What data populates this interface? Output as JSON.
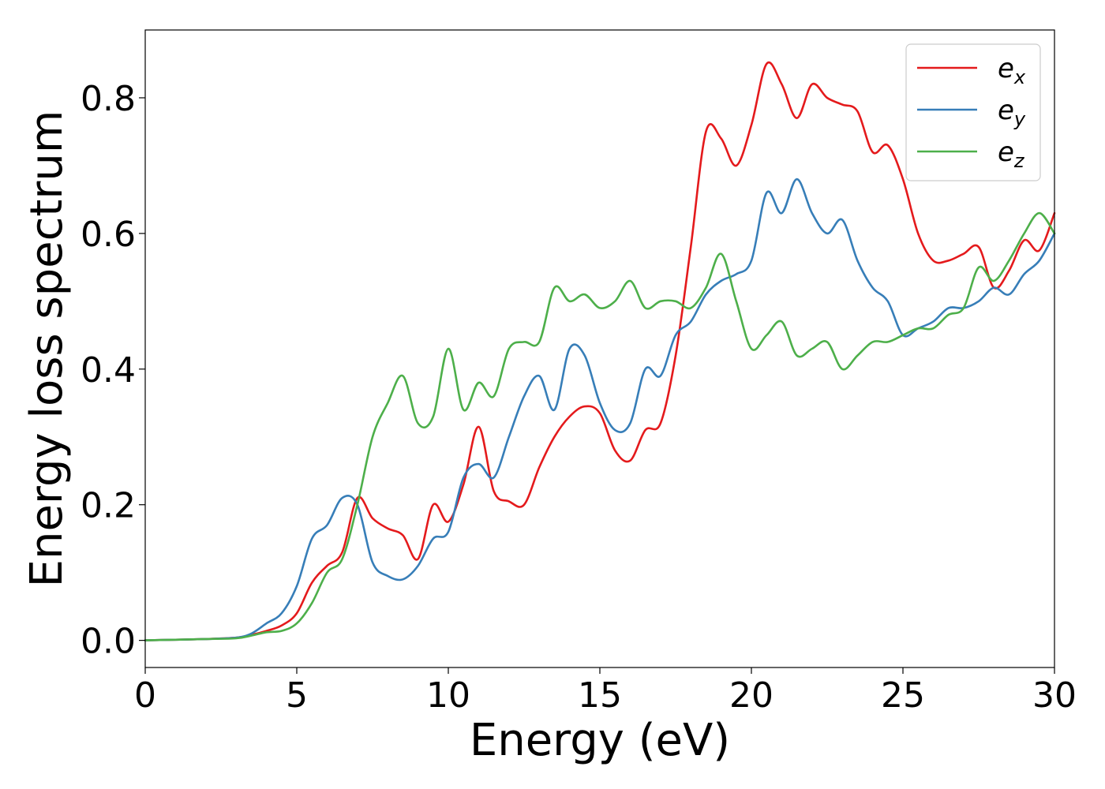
{
  "chart_data": {
    "type": "line",
    "title": "",
    "xlabel": "Energy (eV)",
    "ylabel": "Energy loss spectrum",
    "xlim": [
      0,
      30
    ],
    "ylim": [
      -0.04,
      0.9
    ],
    "xticks": [
      0,
      5,
      10,
      15,
      20,
      25,
      30
    ],
    "xtick_labels": [
      "0",
      "5",
      "10",
      "15",
      "20",
      "25",
      "30"
    ],
    "yticks": [
      0.0,
      0.2,
      0.4,
      0.6,
      0.8
    ],
    "ytick_labels": [
      "0.0",
      "0.2",
      "0.4",
      "0.6",
      "0.8"
    ],
    "grid": false,
    "legend_position": "top-right",
    "x": [
      0,
      1,
      2,
      3,
      3.5,
      4,
      4.5,
      5,
      5.5,
      6,
      6.5,
      7,
      7.5,
      8,
      8.5,
      9,
      9.5,
      10,
      10.5,
      11,
      11.5,
      12,
      12.5,
      13,
      13.5,
      14,
      14.5,
      15,
      15.5,
      16,
      16.5,
      17,
      17.5,
      18,
      18.5,
      19,
      19.5,
      20,
      20.5,
      21,
      21.5,
      22,
      22.5,
      23,
      23.5,
      24,
      24.5,
      25,
      25.5,
      26,
      26.5,
      27,
      27.5,
      28,
      28.5,
      29,
      29.5,
      30
    ],
    "series": [
      {
        "name": "e",
        "subscript": "x",
        "color": "#e41a1c",
        "values": [
          0,
          0.001,
          0.002,
          0.004,
          0.008,
          0.014,
          0.022,
          0.04,
          0.085,
          0.11,
          0.13,
          0.21,
          0.18,
          0.165,
          0.155,
          0.12,
          0.2,
          0.175,
          0.23,
          0.315,
          0.22,
          0.205,
          0.2,
          0.255,
          0.3,
          0.33,
          0.345,
          0.335,
          0.28,
          0.265,
          0.31,
          0.32,
          0.42,
          0.58,
          0.75,
          0.74,
          0.7,
          0.76,
          0.85,
          0.82,
          0.77,
          0.82,
          0.8,
          0.79,
          0.78,
          0.72,
          0.73,
          0.68,
          0.6,
          0.56,
          0.56,
          0.57,
          0.58,
          0.52,
          0.545,
          0.59,
          0.575,
          0.63
        ]
      },
      {
        "name": "e",
        "subscript": "y",
        "color": "#377eb8",
        "values": [
          0,
          0.001,
          0.002,
          0.004,
          0.01,
          0.025,
          0.04,
          0.08,
          0.15,
          0.17,
          0.21,
          0.2,
          0.115,
          0.095,
          0.09,
          0.11,
          0.15,
          0.16,
          0.24,
          0.26,
          0.24,
          0.3,
          0.36,
          0.39,
          0.34,
          0.43,
          0.42,
          0.35,
          0.31,
          0.32,
          0.4,
          0.39,
          0.45,
          0.47,
          0.51,
          0.53,
          0.54,
          0.56,
          0.66,
          0.63,
          0.68,
          0.63,
          0.6,
          0.62,
          0.56,
          0.52,
          0.5,
          0.45,
          0.46,
          0.47,
          0.49,
          0.49,
          0.5,
          0.52,
          0.51,
          0.54,
          0.56,
          0.6
        ]
      },
      {
        "name": "e",
        "subscript": "z",
        "color": "#4daf4a",
        "values": [
          0,
          0.001,
          0.002,
          0.003,
          0.007,
          0.012,
          0.014,
          0.025,
          0.055,
          0.1,
          0.12,
          0.2,
          0.3,
          0.35,
          0.39,
          0.32,
          0.33,
          0.43,
          0.34,
          0.38,
          0.36,
          0.43,
          0.44,
          0.44,
          0.52,
          0.5,
          0.51,
          0.49,
          0.5,
          0.53,
          0.49,
          0.5,
          0.5,
          0.49,
          0.52,
          0.57,
          0.5,
          0.43,
          0.45,
          0.47,
          0.42,
          0.43,
          0.44,
          0.4,
          0.42,
          0.44,
          0.44,
          0.45,
          0.46,
          0.46,
          0.48,
          0.49,
          0.55,
          0.53,
          0.56,
          0.6,
          0.63,
          0.6
        ]
      }
    ]
  }
}
